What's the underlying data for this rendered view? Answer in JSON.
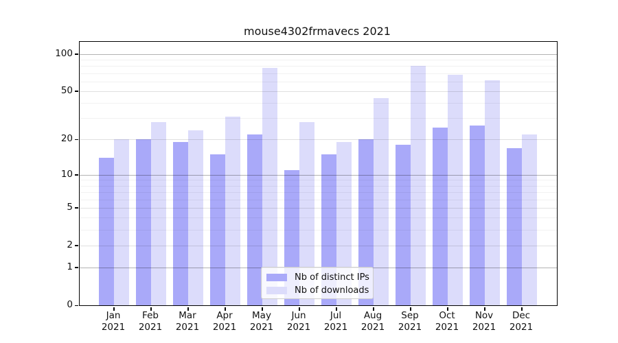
{
  "title": "mouse4302frmavecs 2021",
  "colors": {
    "distinct_ips": "#a9a9f9",
    "downloads": "#dcdcfb"
  },
  "legend": {
    "items": [
      {
        "key": "distinct_ips",
        "label": "Nb of distinct IPs"
      },
      {
        "key": "downloads",
        "label": "Nb of downloads"
      }
    ]
  },
  "y_axis": {
    "tick_values": [
      100,
      50,
      20,
      10,
      5,
      2,
      1,
      0
    ],
    "tick_labels": [
      "100",
      "50",
      "20",
      "10",
      "5",
      "2",
      "1",
      "0"
    ],
    "decade_gridlines": [
      1,
      10,
      100
    ],
    "mid_gridlines": [
      2,
      5,
      20,
      50
    ],
    "minor_gridlines": [
      3,
      4,
      6,
      7,
      8,
      9,
      30,
      40,
      60,
      70,
      80,
      90
    ]
  },
  "x_axis": {
    "year": "2021",
    "months": [
      "Jan",
      "Feb",
      "Mar",
      "Apr",
      "May",
      "Jun",
      "Jul",
      "Aug",
      "Sep",
      "Oct",
      "Nov",
      "Dec"
    ]
  },
  "chart_data": {
    "type": "bar",
    "title": "mouse4302frmavecs 2021",
    "categories": [
      "Jan 2021",
      "Feb 2021",
      "Mar 2021",
      "Apr 2021",
      "May 2021",
      "Jun 2021",
      "Jul 2021",
      "Aug 2021",
      "Sep 2021",
      "Oct 2021",
      "Nov 2021",
      "Dec 2021"
    ],
    "series": [
      {
        "name": "Nb of distinct IPs",
        "key": "distinct_ips",
        "values": [
          14,
          20,
          19,
          15,
          22,
          11,
          15,
          20,
          18,
          25,
          26,
          17
        ]
      },
      {
        "name": "Nb of downloads",
        "key": "downloads",
        "values": [
          20,
          28,
          24,
          31,
          77,
          28,
          19,
          44,
          80,
          68,
          61,
          22
        ]
      }
    ],
    "ylabel": "",
    "xlabel": "",
    "yscale": "log1p",
    "yticks": [
      0,
      1,
      2,
      5,
      10,
      20,
      50,
      100
    ],
    "grid": true,
    "legend_position": "lower center"
  }
}
